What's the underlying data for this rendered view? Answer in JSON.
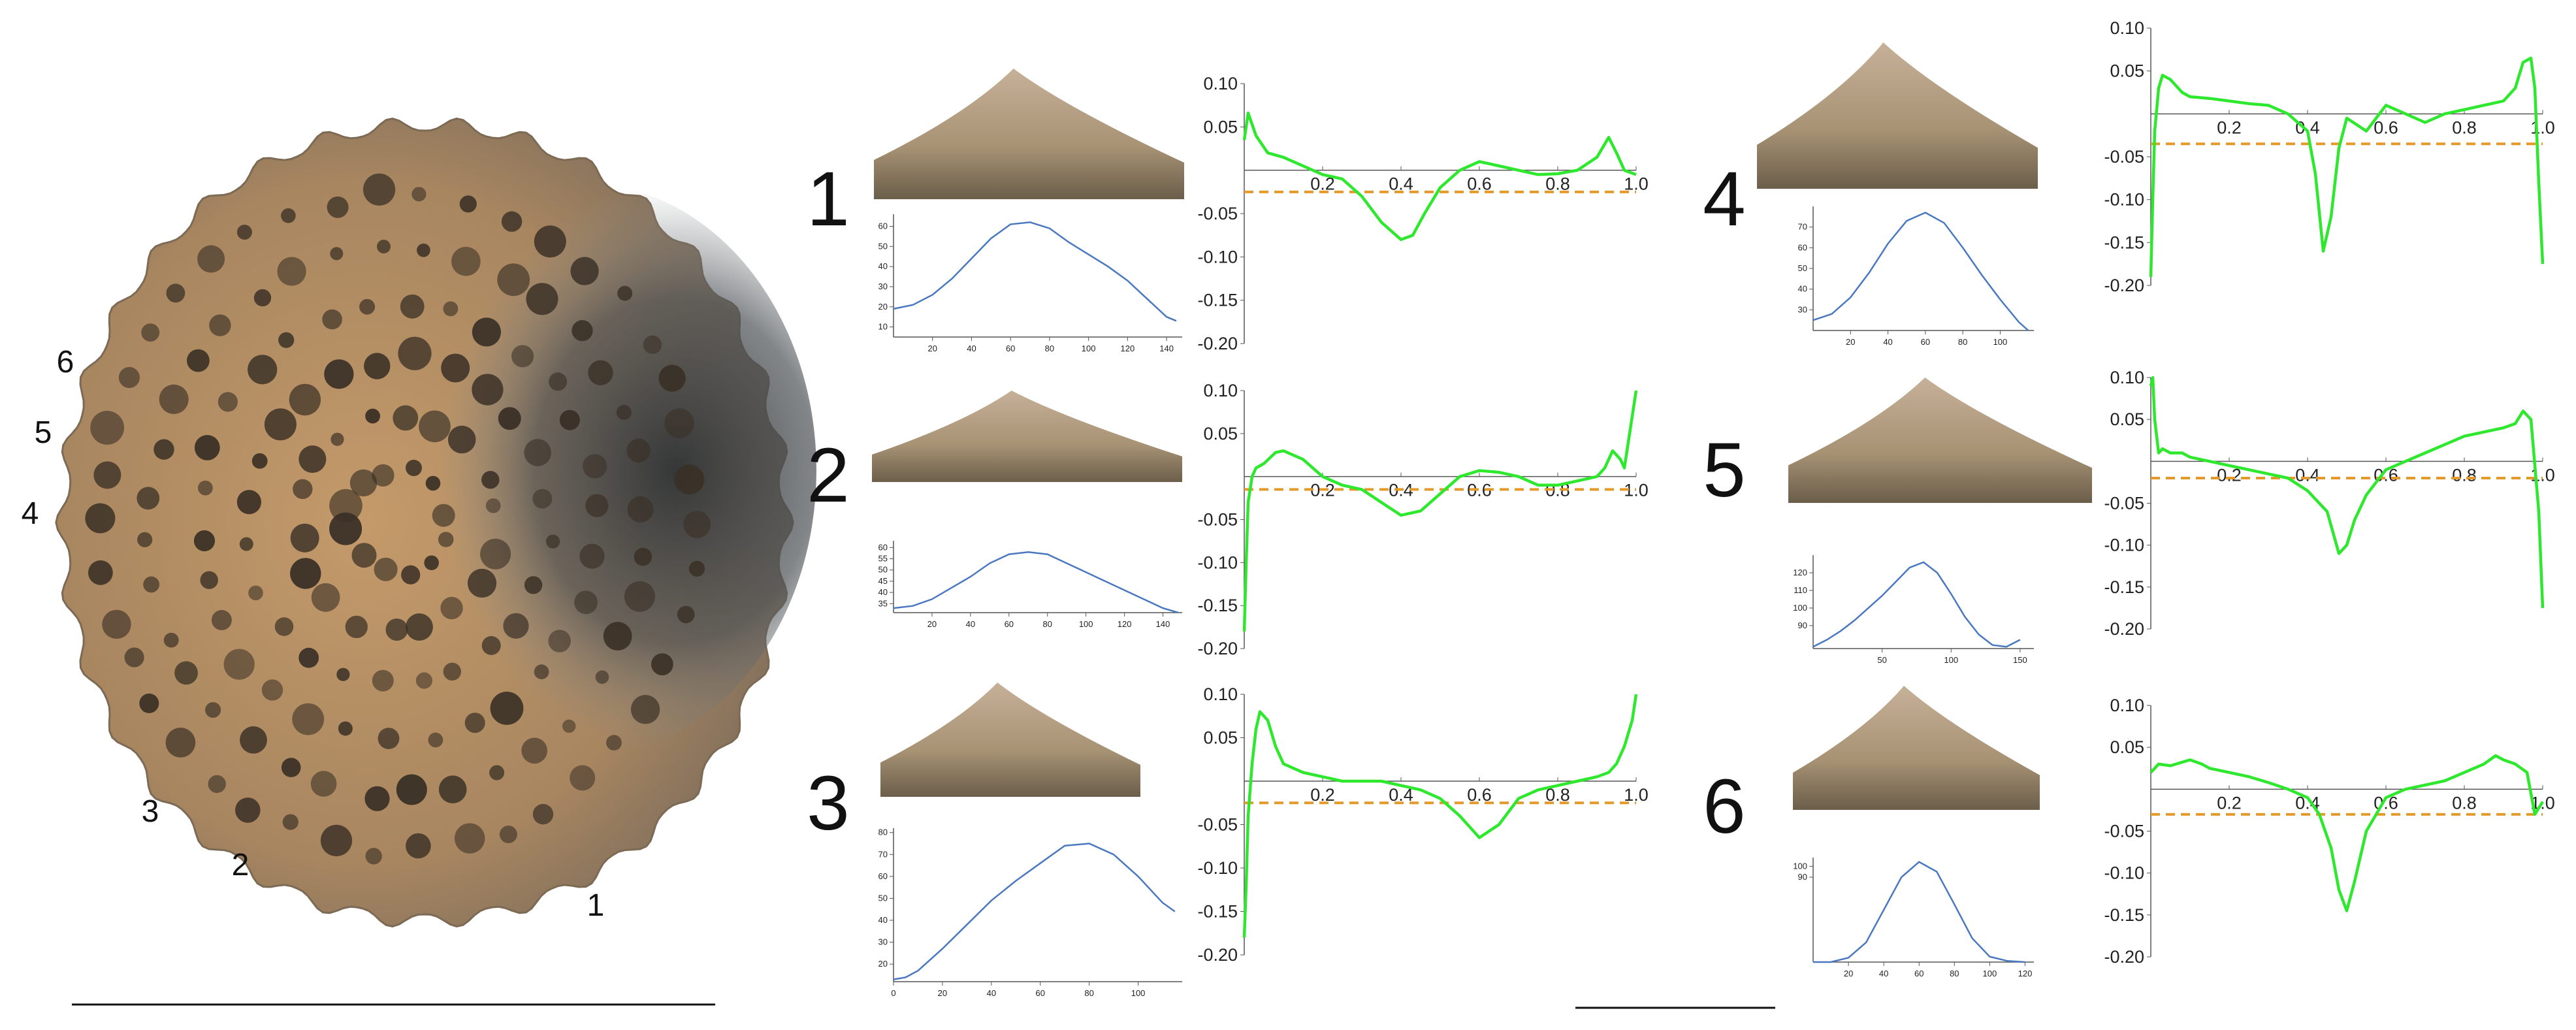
{
  "specimen": {
    "labels": [
      "6",
      "5",
      "4",
      "3",
      "2",
      "1"
    ]
  },
  "colors": {
    "curve_green": "#2ee82e",
    "threshold_orange": "#e39a2b",
    "profile_blue": "#4a78c0",
    "axis": "#555555",
    "specimen_base": "#b08a60",
    "pit_dark": "#3a3026",
    "patch_dark": "#3f4448"
  },
  "chart_data": [
    {
      "panel": "1",
      "type": "line",
      "role": "profile",
      "x": [
        0,
        10,
        20,
        30,
        40,
        50,
        60,
        70,
        80,
        90,
        100,
        110,
        120,
        130,
        140,
        145
      ],
      "y": [
        19,
        21,
        26,
        34,
        44,
        54,
        61,
        62,
        59,
        52,
        46,
        40,
        33,
        24,
        15,
        13
      ],
      "xticks": [
        20,
        40,
        60,
        80,
        100,
        120,
        140
      ],
      "yticks": [
        10,
        20,
        30,
        40,
        50,
        60
      ],
      "xlim": [
        0,
        148
      ],
      "ylim": [
        5,
        66
      ]
    },
    {
      "panel": "1",
      "type": "line",
      "role": "signature",
      "x": [
        0,
        0.01,
        0.03,
        0.06,
        0.1,
        0.15,
        0.2,
        0.25,
        0.3,
        0.35,
        0.4,
        0.43,
        0.46,
        0.5,
        0.55,
        0.6,
        0.65,
        0.7,
        0.75,
        0.8,
        0.85,
        0.9,
        0.93,
        0.95,
        0.97,
        1.0
      ],
      "y": [
        0.035,
        0.066,
        0.04,
        0.02,
        0.015,
        0.005,
        -0.005,
        -0.01,
        -0.03,
        -0.06,
        -0.08,
        -0.075,
        -0.05,
        -0.02,
        0.0,
        0.01,
        0.005,
        0.0,
        -0.005,
        -0.004,
        0.0,
        0.015,
        0.038,
        0.02,
        0.0,
        -0.005
      ],
      "threshold": -0.025,
      "xticks": [
        0.2,
        0.4,
        0.6,
        0.8,
        1.0
      ],
      "xtick_labels": [
        "0.2",
        "0.4",
        "0.6",
        "0.8",
        "1.0"
      ],
      "yticks": [
        0.1,
        0.05,
        -0.05,
        -0.1,
        -0.15,
        -0.2
      ],
      "ytick_labels": [
        "0.10",
        "0.05",
        "-0.05",
        "-0.10",
        "-0.15",
        "-0.20"
      ],
      "ylim": [
        -0.2,
        0.1
      ]
    },
    {
      "panel": "2",
      "type": "line",
      "role": "profile",
      "x": [
        0,
        10,
        20,
        30,
        40,
        50,
        60,
        70,
        80,
        90,
        100,
        110,
        120,
        130,
        140,
        148
      ],
      "y": [
        33,
        34,
        37,
        42,
        47,
        53,
        57,
        58,
        57,
        53,
        49,
        45,
        41,
        37,
        33,
        31
      ],
      "xticks": [
        20,
        40,
        60,
        80,
        100,
        120,
        140
      ],
      "yticks": [
        35,
        40,
        45,
        50,
        55,
        60
      ],
      "xlim": [
        0,
        150
      ],
      "ylim": [
        31,
        63
      ]
    },
    {
      "panel": "2",
      "type": "line",
      "role": "signature",
      "x": [
        0,
        0.005,
        0.01,
        0.02,
        0.03,
        0.05,
        0.08,
        0.1,
        0.15,
        0.2,
        0.25,
        0.3,
        0.35,
        0.4,
        0.45,
        0.5,
        0.55,
        0.6,
        0.65,
        0.7,
        0.75,
        0.8,
        0.85,
        0.9,
        0.92,
        0.94,
        0.96,
        0.97,
        0.98,
        0.99,
        1.0
      ],
      "y": [
        -0.18,
        -0.1,
        -0.03,
        0.0,
        0.01,
        0.015,
        0.028,
        0.03,
        0.02,
        0.0,
        -0.01,
        -0.015,
        -0.03,
        -0.045,
        -0.04,
        -0.02,
        0.0,
        0.007,
        0.005,
        0.0,
        -0.01,
        -0.01,
        -0.005,
        0.0,
        0.01,
        0.03,
        0.02,
        0.01,
        0.04,
        0.07,
        0.1
      ],
      "threshold": -0.015,
      "xticks": [
        0.2,
        0.4,
        0.6,
        0.8,
        1.0
      ],
      "xtick_labels": [
        "0.2",
        "0.4",
        "0.6",
        "0.8",
        "1.0"
      ],
      "yticks": [
        0.1,
        0.05,
        -0.05,
        -0.1,
        -0.15,
        -0.2
      ],
      "ytick_labels": [
        "0.10",
        "0.05",
        "-0.05",
        "-0.10",
        "-0.15",
        "-0.20"
      ],
      "ylim": [
        -0.2,
        0.1
      ]
    },
    {
      "panel": "3",
      "type": "line",
      "role": "profile",
      "x": [
        0,
        5,
        10,
        20,
        30,
        40,
        50,
        60,
        70,
        80,
        90,
        100,
        110,
        115
      ],
      "y": [
        13,
        14,
        17,
        27,
        38,
        49,
        58,
        66,
        74,
        75,
        70,
        60,
        48,
        44
      ],
      "xticks": [
        0,
        20,
        40,
        60,
        80,
        100
      ],
      "yticks": [
        20,
        30,
        40,
        50,
        60,
        70,
        80
      ],
      "xlim": [
        0,
        118
      ],
      "ylim": [
        12,
        82
      ]
    },
    {
      "panel": "3",
      "type": "line",
      "role": "signature",
      "x": [
        0,
        0.005,
        0.01,
        0.02,
        0.03,
        0.04,
        0.06,
        0.08,
        0.1,
        0.15,
        0.2,
        0.25,
        0.3,
        0.35,
        0.4,
        0.45,
        0.5,
        0.55,
        0.6,
        0.65,
        0.7,
        0.75,
        0.8,
        0.85,
        0.9,
        0.93,
        0.95,
        0.97,
        0.99,
        1.0
      ],
      "y": [
        -0.18,
        -0.12,
        -0.04,
        0.02,
        0.06,
        0.08,
        0.07,
        0.04,
        0.02,
        0.01,
        0.005,
        0.0,
        0.0,
        0.0,
        -0.005,
        -0.01,
        -0.02,
        -0.04,
        -0.065,
        -0.05,
        -0.02,
        -0.01,
        -0.005,
        0.0,
        0.005,
        0.01,
        0.02,
        0.04,
        0.07,
        0.1
      ],
      "threshold": -0.025,
      "xticks": [
        0.2,
        0.4,
        0.6,
        0.8,
        1.0
      ],
      "xtick_labels": [
        "0.2",
        "0.4",
        "0.6",
        "0.8",
        "1.0"
      ],
      "yticks": [
        0.1,
        0.05,
        -0.05,
        -0.1,
        -0.15,
        -0.2
      ],
      "ytick_labels": [
        "0.10",
        "0.05",
        "-0.05",
        "-0.10",
        "-0.15",
        "-0.20"
      ],
      "ylim": [
        -0.2,
        0.1
      ]
    },
    {
      "panel": "4",
      "type": "line",
      "role": "profile",
      "x": [
        0,
        10,
        20,
        30,
        40,
        50,
        60,
        70,
        80,
        90,
        100,
        110,
        115
      ],
      "y": [
        25,
        28,
        36,
        48,
        62,
        73,
        77,
        72,
        60,
        47,
        35,
        24,
        20
      ],
      "xticks": [
        20,
        40,
        60,
        80,
        100
      ],
      "yticks": [
        30,
        40,
        50,
        60,
        70
      ],
      "xlim": [
        0,
        118
      ],
      "ylim": [
        20,
        80
      ]
    },
    {
      "panel": "4",
      "type": "line",
      "role": "signature",
      "x": [
        0,
        0.005,
        0.01,
        0.02,
        0.03,
        0.05,
        0.08,
        0.1,
        0.15,
        0.2,
        0.25,
        0.3,
        0.35,
        0.4,
        0.42,
        0.44,
        0.46,
        0.48,
        0.5,
        0.55,
        0.6,
        0.65,
        0.7,
        0.75,
        0.8,
        0.85,
        0.9,
        0.93,
        0.95,
        0.97,
        0.98,
        0.99,
        1.0
      ],
      "y": [
        -0.19,
        -0.1,
        -0.02,
        0.03,
        0.045,
        0.04,
        0.025,
        0.02,
        0.018,
        0.015,
        0.012,
        0.01,
        0.0,
        -0.02,
        -0.07,
        -0.16,
        -0.12,
        -0.04,
        -0.005,
        -0.02,
        0.01,
        0.0,
        -0.01,
        0.0,
        0.005,
        0.01,
        0.015,
        0.03,
        0.06,
        0.065,
        0.03,
        -0.08,
        -0.175
      ],
      "threshold": -0.035,
      "xticks": [
        0.2,
        0.4,
        0.6,
        0.8,
        1.0
      ],
      "xtick_labels": [
        "0.2",
        "0.4",
        "0.6",
        "0.8",
        "1.0"
      ],
      "yticks": [
        0.1,
        0.05,
        -0.05,
        -0.1,
        -0.15,
        -0.2
      ],
      "ytick_labels": [
        "0.10",
        "0.05",
        "-0.05",
        "-0.10",
        "-0.15",
        "-0.20"
      ],
      "ylim": [
        -0.2,
        0.1
      ]
    },
    {
      "panel": "5",
      "type": "line",
      "role": "profile",
      "x": [
        0,
        10,
        20,
        30,
        40,
        50,
        60,
        70,
        80,
        90,
        100,
        110,
        120,
        130,
        140,
        150
      ],
      "y": [
        78,
        82,
        87,
        93,
        100,
        107,
        115,
        123,
        126,
        120,
        108,
        95,
        85,
        79,
        78,
        82
      ],
      "xticks": [
        50,
        100,
        150
      ],
      "yticks": [
        90,
        100,
        110,
        120
      ],
      "xlim": [
        0,
        160
      ],
      "ylim": [
        77,
        130
      ]
    },
    {
      "panel": "5",
      "type": "line",
      "role": "signature",
      "x": [
        0,
        0.005,
        0.01,
        0.02,
        0.03,
        0.05,
        0.08,
        0.1,
        0.15,
        0.2,
        0.25,
        0.3,
        0.35,
        0.4,
        0.45,
        0.48,
        0.5,
        0.52,
        0.55,
        0.6,
        0.65,
        0.7,
        0.75,
        0.8,
        0.85,
        0.9,
        0.93,
        0.95,
        0.97,
        0.99,
        1.0
      ],
      "y": [
        0.09,
        0.1,
        0.05,
        0.01,
        0.015,
        0.01,
        0.01,
        0.005,
        0.0,
        -0.005,
        -0.01,
        -0.015,
        -0.02,
        -0.035,
        -0.06,
        -0.11,
        -0.1,
        -0.07,
        -0.04,
        -0.01,
        0.0,
        0.01,
        0.02,
        0.03,
        0.035,
        0.04,
        0.045,
        0.06,
        0.05,
        -0.06,
        -0.175
      ],
      "threshold": -0.02,
      "xticks": [
        0.2,
        0.4,
        0.6,
        0.8,
        1.0
      ],
      "xtick_labels": [
        "0.2",
        "0.4",
        "0.6",
        "0.8",
        "1.0"
      ],
      "yticks": [
        0.1,
        0.05,
        -0.05,
        -0.1,
        -0.15,
        -0.2
      ],
      "ytick_labels": [
        "0.10",
        "0.05",
        "-0.05",
        "-0.10",
        "-0.15",
        "-0.20"
      ],
      "ylim": [
        -0.2,
        0.1
      ]
    },
    {
      "panel": "6",
      "type": "line",
      "role": "profile",
      "x": [
        0,
        10,
        20,
        30,
        40,
        50,
        60,
        70,
        80,
        90,
        100,
        110,
        120
      ],
      "y": [
        12,
        12,
        16,
        30,
        60,
        90,
        104,
        95,
        65,
        34,
        17,
        13,
        12
      ],
      "xticks": [
        20,
        40,
        60,
        80,
        100,
        120
      ],
      "yticks": [
        90,
        100
      ],
      "xlim": [
        0,
        125
      ],
      "ylim": [
        12,
        108
      ]
    },
    {
      "panel": "6",
      "type": "line",
      "role": "signature",
      "x": [
        0,
        0.02,
        0.05,
        0.1,
        0.13,
        0.15,
        0.2,
        0.25,
        0.3,
        0.35,
        0.4,
        0.43,
        0.46,
        0.48,
        0.5,
        0.52,
        0.55,
        0.6,
        0.65,
        0.7,
        0.75,
        0.8,
        0.85,
        0.88,
        0.9,
        0.93,
        0.96,
        0.98,
        1.0
      ],
      "y": [
        0.02,
        0.03,
        0.028,
        0.035,
        0.03,
        0.025,
        0.02,
        0.015,
        0.008,
        0.0,
        -0.01,
        -0.03,
        -0.07,
        -0.12,
        -0.145,
        -0.11,
        -0.05,
        -0.01,
        0.0,
        0.005,
        0.01,
        0.02,
        0.03,
        0.04,
        0.035,
        0.03,
        0.02,
        -0.03,
        -0.015
      ],
      "threshold": -0.03,
      "xticks": [
        0.2,
        0.4,
        0.6,
        0.8,
        1.0
      ],
      "xtick_labels": [
        "0.2",
        "0.4",
        "0.6",
        "0.8",
        "1.0"
      ],
      "yticks": [
        0.1,
        0.05,
        -0.05,
        -0.1,
        -0.15,
        -0.2
      ],
      "ytick_labels": [
        "0.10",
        "0.05",
        "-0.05",
        "-0.10",
        "-0.15",
        "-0.20"
      ],
      "ylim": [
        -0.2,
        0.1
      ]
    }
  ]
}
